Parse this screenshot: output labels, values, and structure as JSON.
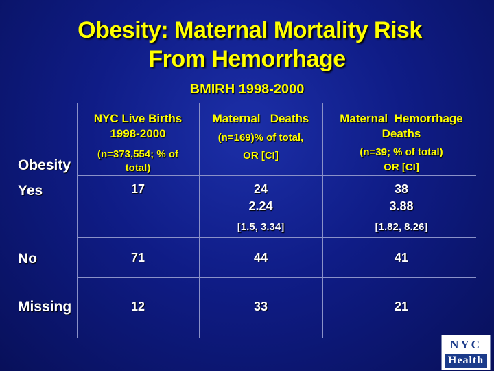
{
  "title_line1": "Obesity: Maternal Mortality Risk",
  "title_line2": "From Hemorrhage",
  "subtitle": "BMIRH 1998-2000",
  "table": {
    "row_header_label": "Obesity",
    "col1": {
      "title_l1": "NYC Live Births",
      "title_l2": "1998-2000",
      "sub_l1": "(n=373,554; % of",
      "sub_l2": "total)"
    },
    "col2": {
      "title": "Maternal   Deaths",
      "sub_l1": "(n=169)% of total,",
      "sub_l2": "OR [CI]"
    },
    "col3": {
      "title_l1": "Maternal  Hemorrhage",
      "title_l2": "Deaths",
      "sub_l1": "(n=39; % of total)",
      "sub_l2": "OR [CI]"
    },
    "rows": [
      {
        "label": "Yes",
        "births": "17",
        "deaths": "24",
        "deaths_or": "2.24",
        "deaths_ci": "[1.5, 3.34]",
        "hem": "38",
        "hem_or": "3.88",
        "hem_ci": "[1.82, 8.26]"
      },
      {
        "label": "No",
        "births": "71",
        "deaths": "44",
        "hem": "41"
      },
      {
        "label": "Missing",
        "births": "12",
        "deaths": "33",
        "hem": "21"
      }
    ]
  },
  "logo": {
    "top": "NYC",
    "bottom": "Health"
  }
}
